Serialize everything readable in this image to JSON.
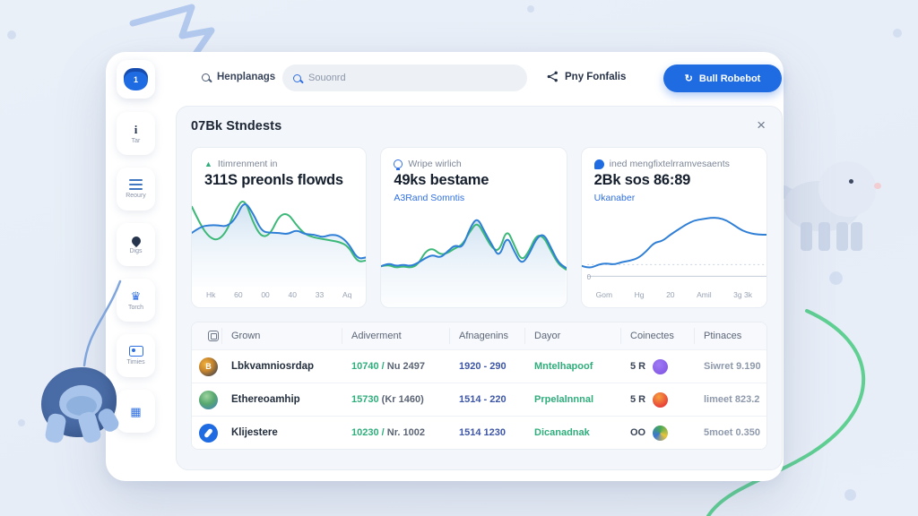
{
  "topbar": {
    "logo_glyph": "1",
    "brand_label": "Henplanags",
    "search_placeholder": "Souonrd",
    "share_label": "Pny Fonfalis",
    "refresh_icon": "↻",
    "refresh_button": "Bull Robebot"
  },
  "sidebar": {
    "items": [
      {
        "icon": "info-icon",
        "label": "Tar"
      },
      {
        "icon": "menu-icon",
        "label": "Reoury"
      },
      {
        "icon": "pin-icon",
        "label": "Digs"
      },
      {
        "icon": "crown-icon",
        "label": "Torch"
      },
      {
        "icon": "image-icon",
        "label": "Timies"
      },
      {
        "icon": "qr-icon",
        "label": ""
      }
    ],
    "qr_glyph": "▦",
    "crown_glyph": "♛"
  },
  "panel": {
    "title": "07Bk Stndests",
    "close_icon": "×"
  },
  "cards": [
    {
      "label": "Itimrenment in",
      "value": "311S preonls flowds",
      "trend_icon": "▲",
      "xticks": [
        "Hk",
        "60",
        "00",
        "40",
        "33",
        "Aq"
      ],
      "chart": {
        "type": "line",
        "series": [
          {
            "name": "secondary",
            "color": "#3cb878",
            "points": [
              8,
              20,
              28,
              30,
              24,
              10,
              2,
              18,
              28,
              26,
              14,
              12,
              20,
              26,
              28,
              29,
              30,
              31,
              34,
              44,
              43
            ]
          },
          {
            "name": "primary",
            "color": "#2f7fd6",
            "area": true,
            "points": [
              25,
              21,
              20,
              20,
              21,
              16,
              4,
              12,
              24,
              25,
              25,
              26,
              23,
              26,
              26,
              28,
              26,
              27,
              32,
              42,
              41
            ]
          }
        ]
      }
    },
    {
      "label": "Wripe wirlich",
      "value": "49ks bestame",
      "link": "A3Rand Somntis",
      "chart": {
        "type": "line",
        "series": [
          {
            "name": "secondary",
            "color": "#3cb878",
            "points": [
              35,
              34,
              36,
              35,
              36,
              34,
              26,
              24,
              28,
              27,
              24,
              22,
              14,
              8,
              16,
              24,
              26,
              12,
              22,
              32,
              26,
              16,
              17,
              26,
              34,
              37
            ]
          },
          {
            "name": "primary",
            "color": "#2f7fd6",
            "area": true,
            "points": [
              35,
              33,
              35,
              34,
              35,
              33,
              30,
              28,
              30,
              26,
              22,
              24,
              12,
              5,
              14,
              22,
              30,
              16,
              26,
              34,
              28,
              18,
              15,
              24,
              33,
              36
            ]
          }
        ]
      }
    },
    {
      "label": "ined mengfixtelrramvesaents",
      "value": "2Bk sos 86:89",
      "link": "Ukanaber",
      "y_zero": "0",
      "xticks": [
        "Gom",
        "Hg",
        "20",
        "Amil",
        "3g 3k"
      ],
      "chart": {
        "type": "line",
        "baselines": [
          {
            "y": 43,
            "dashed": true
          },
          {
            "y": 52,
            "dashed": false
          }
        ],
        "series": [
          {
            "name": "primary",
            "color": "#2f7fd6",
            "points": [
              44,
              46,
              43,
              42,
              43,
              41,
              40,
              38,
              33,
              26,
              25,
              20,
              16,
              12,
              9,
              8,
              7,
              7,
              9,
              13,
              17,
              19,
              20,
              20
            ]
          }
        ]
      }
    }
  ],
  "table": {
    "columns": [
      "Grown",
      "Adiverment",
      "Afnagenins",
      "Dayor",
      "Coinectes",
      "Ptinaces"
    ],
    "rows": [
      {
        "avatar": "btc-coin-icon",
        "avatar_glyph": "B",
        "name": "Lbkvamniosrdap",
        "adv_main": "10740 /",
        "adv_sub": "Nu 2497",
        "amount": "1920 - 290",
        "dayor": "Mntelhapoof",
        "coin": "5 R",
        "coin_badge": "purple",
        "price": "Siwret 9.190"
      },
      {
        "avatar": "eth-coin-icon",
        "avatar_glyph": "",
        "name": "Ethereoamhip",
        "adv_main": "15730",
        "adv_sub": "(Kr 1460)",
        "amount": "1514 - 220",
        "dayor": "Prpelalnnnal",
        "coin": "5 R",
        "coin_badge": "red",
        "price": "limeet 823.2"
      },
      {
        "avatar": "phone-coin-icon",
        "avatar_glyph": "",
        "name": "Klijestere",
        "adv_main": "10230 /",
        "adv_sub": "Nr. 1002",
        "amount": "1514 1230",
        "dayor": "Dicanadnak",
        "coin": "OO",
        "coin_badge": "multi",
        "price": "5moet 0.350"
      }
    ]
  },
  "colors": {
    "accent_blue": "#1f6be2",
    "chart_blue": "#2f7fd6",
    "chart_green": "#3cb878",
    "positive_green": "#2fae7c",
    "amount_blue": "#3d56a6",
    "panel_bg": "#f3f6fa"
  }
}
